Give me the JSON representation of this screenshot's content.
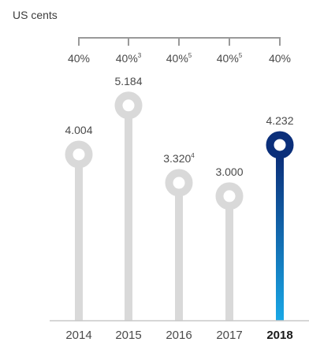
{
  "chart_data": {
    "type": "bar",
    "unit_label": "US cents",
    "categories": [
      "2014",
      "2015",
      "2016",
      "2017",
      "2018"
    ],
    "values": [
      4.004,
      5.184,
      3.32,
      3.0,
      4.232
    ],
    "value_labels": [
      "4.004",
      "5.184",
      "3.320",
      "3.000",
      "4.232"
    ],
    "value_footnotes": [
      "",
      "",
      "4",
      "",
      ""
    ],
    "payout_ratios": [
      "40%",
      "40%",
      "40%",
      "40%",
      "40%"
    ],
    "payout_footnotes": [
      "",
      "3",
      "5",
      "5",
      ""
    ],
    "highlight_category": "2018",
    "colors": {
      "bar": "#d9d9d9",
      "highlight_top": "#0b2f7a",
      "highlight_bottom": "#19a8e6",
      "text": "#4a4a4a"
    }
  }
}
